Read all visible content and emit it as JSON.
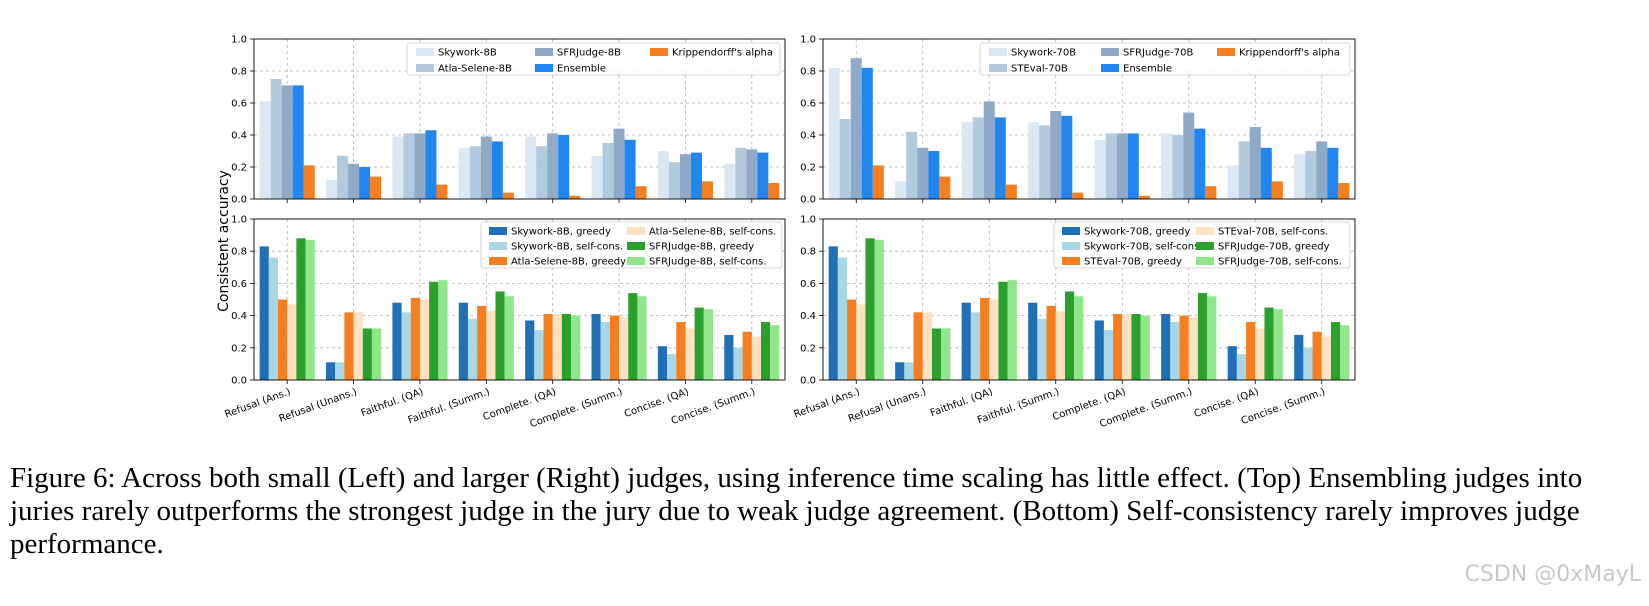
{
  "figure": {
    "ylabel": "Consistent accuracy",
    "caption": "Figure 6: Across both small (Left) and larger (Right) judges, using inference time scaling has little effect. (Top) Ensembling judges into juries rarely outperforms the strongest judge in the jury due to weak judge agreement. (Bottom) Self-consistency rarely improves judge performance.",
    "watermark": "CSDN @0xMayL"
  },
  "chart_data": [
    {
      "type": "bar",
      "panel": "top-left",
      "categories": [
        "Refusal (Ans.)",
        "Refusal (Unans.)",
        "Faithful. (QA)",
        "Faithful. (Summ.)",
        "Complete. (QA)",
        "Complete. (Summ.)",
        "Concise. (QA)",
        "Concise. (Summ.)"
      ],
      "show_categories": false,
      "ylim": [
        0,
        1.0
      ],
      "yticks": [
        "0.0",
        "0.2",
        "0.4",
        "0.6",
        "0.8",
        "1.0"
      ],
      "grid": true,
      "legend": {
        "placement": "top-right",
        "columns": 3
      },
      "series": [
        {
          "name": "Skywork-8B",
          "color": "#dbe7f3",
          "values": [
            0.61,
            0.12,
            0.39,
            0.32,
            0.39,
            0.27,
            0.3,
            0.22
          ]
        },
        {
          "name": "Atla-Selene-8B",
          "color": "#b3c9dd",
          "values": [
            0.75,
            0.27,
            0.41,
            0.33,
            0.33,
            0.35,
            0.23,
            0.32
          ]
        },
        {
          "name": "SFRJudge-8B",
          "color": "#8fa9c6",
          "values": [
            0.71,
            0.22,
            0.41,
            0.39,
            0.41,
            0.44,
            0.28,
            0.31
          ]
        },
        {
          "name": "Ensemble",
          "color": "#2187f0",
          "values": [
            0.71,
            0.2,
            0.43,
            0.36,
            0.4,
            0.37,
            0.29,
            0.29
          ]
        },
        {
          "name": "Krippendorff's alpha",
          "color": "#f57e1f",
          "values": [
            0.21,
            0.14,
            0.09,
            0.04,
            0.02,
            0.08,
            0.11,
            0.1
          ]
        }
      ]
    },
    {
      "type": "bar",
      "panel": "top-right",
      "categories": [
        "Refusal (Ans.)",
        "Refusal (Unans.)",
        "Faithful. (QA)",
        "Faithful. (Summ.)",
        "Complete. (QA)",
        "Complete. (Summ.)",
        "Concise. (QA)",
        "Concise. (Summ.)"
      ],
      "show_categories": false,
      "ylim": [
        0,
        1.0
      ],
      "yticks": [
        "0.0",
        "0.2",
        "0.4",
        "0.6",
        "0.8",
        "1.0"
      ],
      "grid": true,
      "legend": {
        "placement": "top-right",
        "columns": 3
      },
      "series": [
        {
          "name": "Skywork-70B",
          "color": "#dbe7f3",
          "values": [
            0.82,
            0.11,
            0.48,
            0.48,
            0.37,
            0.41,
            0.21,
            0.28
          ]
        },
        {
          "name": "STEval-70B",
          "color": "#b3c9dd",
          "values": [
            0.5,
            0.42,
            0.51,
            0.46,
            0.41,
            0.4,
            0.36,
            0.3
          ]
        },
        {
          "name": "SFRJudge-70B",
          "color": "#8fa9c6",
          "values": [
            0.88,
            0.32,
            0.61,
            0.55,
            0.41,
            0.54,
            0.45,
            0.36
          ]
        },
        {
          "name": "Ensemble",
          "color": "#2187f0",
          "values": [
            0.82,
            0.3,
            0.51,
            0.52,
            0.41,
            0.44,
            0.32,
            0.32
          ]
        },
        {
          "name": "Krippendorff's alpha",
          "color": "#f57e1f",
          "values": [
            0.21,
            0.14,
            0.09,
            0.04,
            0.02,
            0.08,
            0.11,
            0.1
          ]
        }
      ]
    },
    {
      "type": "bar",
      "panel": "bottom-left",
      "categories": [
        "Refusal (Ans.)",
        "Refusal (Unans.)",
        "Faithful. (QA)",
        "Faithful. (Summ.)",
        "Complete. (QA)",
        "Complete. (Summ.)",
        "Concise. (QA)",
        "Concise. (Summ.)"
      ],
      "show_categories": true,
      "ylim": [
        0,
        1.0
      ],
      "yticks": [
        "0.0",
        "0.2",
        "0.4",
        "0.6",
        "0.8",
        "1.0"
      ],
      "grid": true,
      "legend": {
        "placement": "top-right",
        "columns": 2
      },
      "series": [
        {
          "name": "Skywork-8B, greedy",
          "color": "#2170b5",
          "values": [
            0.83,
            0.11,
            0.48,
            0.48,
            0.37,
            0.41,
            0.21,
            0.28
          ]
        },
        {
          "name": "Skywork-8B, self-cons.",
          "color": "#a9d7e6",
          "values": [
            0.76,
            0.11,
            0.42,
            0.38,
            0.31,
            0.36,
            0.16,
            0.2
          ]
        },
        {
          "name": "Atla-Selene-8B, greedy",
          "color": "#f57e1f",
          "values": [
            0.5,
            0.42,
            0.51,
            0.46,
            0.41,
            0.4,
            0.36,
            0.3
          ]
        },
        {
          "name": "Atla-Selene-8B, self-cons.",
          "color": "#fde1c2",
          "values": [
            0.47,
            0.42,
            0.5,
            0.43,
            0.41,
            0.39,
            0.32,
            0.27
          ]
        },
        {
          "name": "SFRJudge-8B, greedy",
          "color": "#2ca02c",
          "values": [
            0.88,
            0.32,
            0.61,
            0.55,
            0.41,
            0.54,
            0.45,
            0.36
          ]
        },
        {
          "name": "SFRJudge-8B, self-cons.",
          "color": "#90e68a",
          "values": [
            0.87,
            0.32,
            0.62,
            0.52,
            0.4,
            0.52,
            0.44,
            0.34
          ]
        }
      ]
    },
    {
      "type": "bar",
      "panel": "bottom-right",
      "categories": [
        "Refusal (Ans.)",
        "Refusal (Unans.)",
        "Faithful. (QA)",
        "Faithful. (Summ.)",
        "Complete. (QA)",
        "Complete. (Summ.)",
        "Concise. (QA)",
        "Concise. (Summ.)"
      ],
      "show_categories": true,
      "ylim": [
        0,
        1.0
      ],
      "yticks": [
        "0.0",
        "0.2",
        "0.4",
        "0.6",
        "0.8",
        "1.0"
      ],
      "grid": true,
      "legend": {
        "placement": "top-right",
        "columns": 2
      },
      "series": [
        {
          "name": "Skywork-70B, greedy",
          "color": "#2170b5",
          "values": [
            0.83,
            0.11,
            0.48,
            0.48,
            0.37,
            0.41,
            0.21,
            0.28
          ]
        },
        {
          "name": "Skywork-70B, self-cons.",
          "color": "#a9d7e6",
          "values": [
            0.76,
            0.11,
            0.42,
            0.38,
            0.31,
            0.36,
            0.16,
            0.2
          ]
        },
        {
          "name": "STEval-70B, greedy",
          "color": "#f57e1f",
          "values": [
            0.5,
            0.42,
            0.51,
            0.46,
            0.41,
            0.4,
            0.36,
            0.3
          ]
        },
        {
          "name": "STEval-70B, self-cons.",
          "color": "#fde1c2",
          "values": [
            0.47,
            0.42,
            0.5,
            0.43,
            0.41,
            0.39,
            0.32,
            0.27
          ]
        },
        {
          "name": "SFRJudge-70B, greedy",
          "color": "#2ca02c",
          "values": [
            0.88,
            0.32,
            0.61,
            0.55,
            0.41,
            0.54,
            0.45,
            0.36
          ]
        },
        {
          "name": "SFRJudge-70B, self-cons.",
          "color": "#90e68a",
          "values": [
            0.87,
            0.32,
            0.62,
            0.52,
            0.4,
            0.52,
            0.44,
            0.34
          ]
        }
      ]
    }
  ]
}
